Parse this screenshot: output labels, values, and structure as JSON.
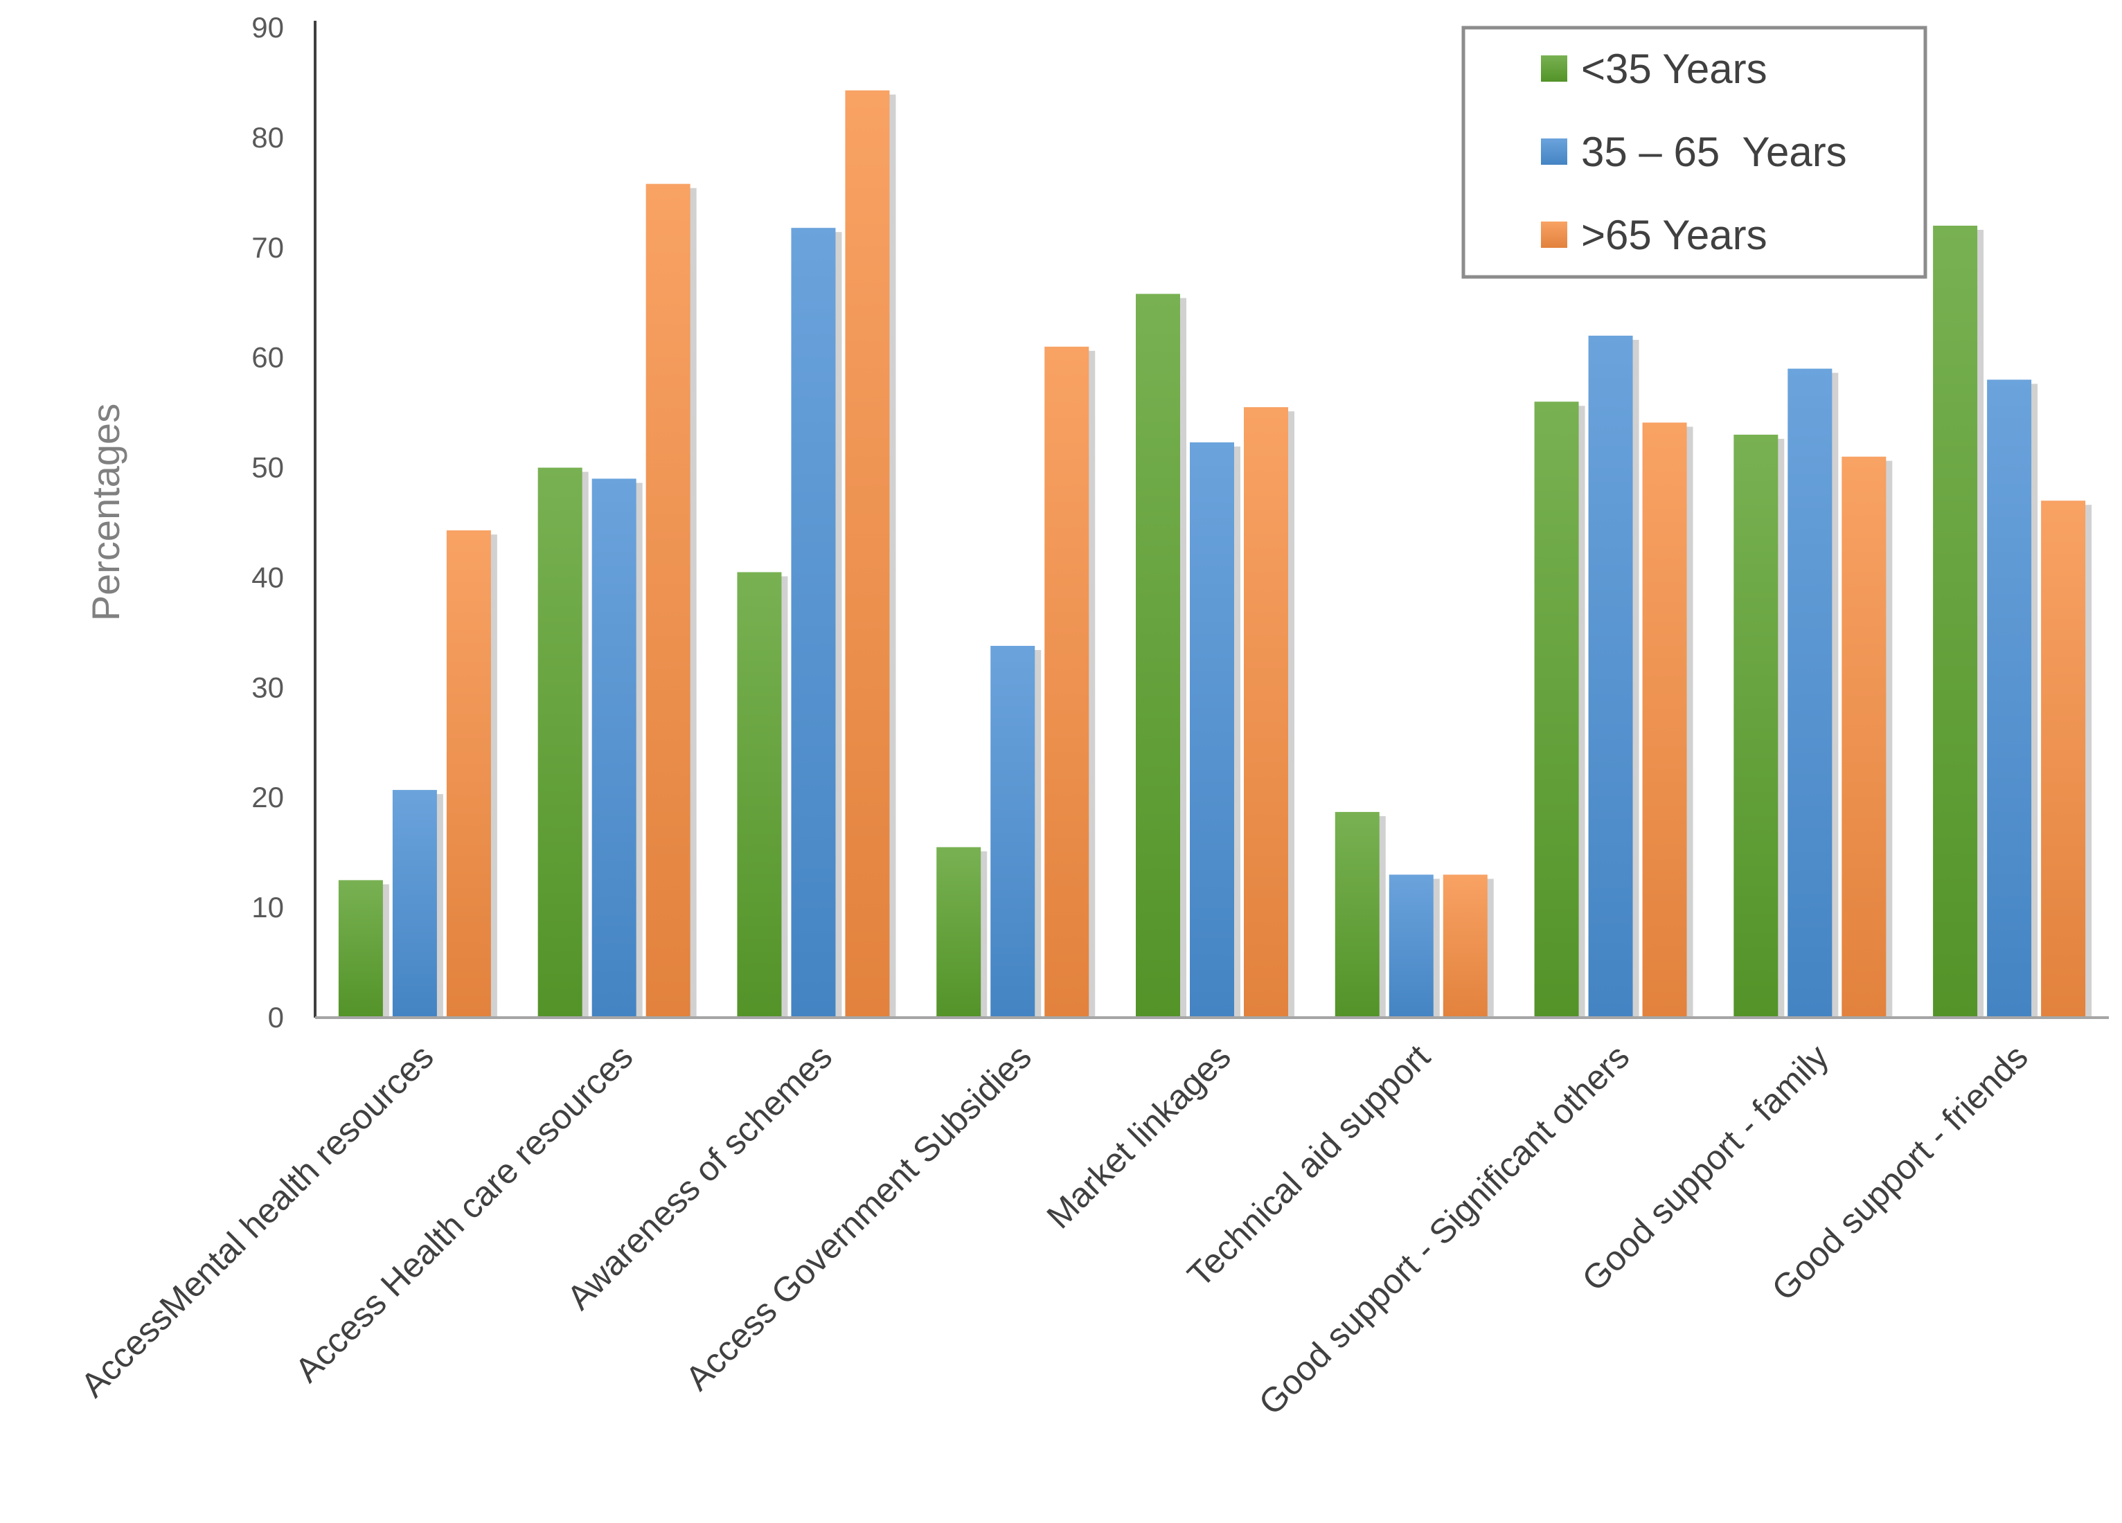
{
  "chart_data": {
    "type": "bar",
    "title": "",
    "xlabel": "",
    "ylabel": "Percentages",
    "ylim": [
      0,
      90
    ],
    "yticks": [
      0,
      10,
      20,
      30,
      40,
      50,
      60,
      70,
      80,
      90
    ],
    "grid": false,
    "legend_position": "top-right",
    "categories": [
      "AccessMental health resources",
      "Access Health care resources",
      "Awareness of schemes",
      "Access Government Subsidies",
      "Market linkages",
      "Technical aid support",
      "Good support - Significant others",
      "Good support - family",
      "Good support - friends"
    ],
    "series": [
      {
        "name": "<35 Years",
        "color": "#5aa02c",
        "values": [
          12.5,
          50,
          40.5,
          15.5,
          65.8,
          18.7,
          56,
          53,
          72
        ]
      },
      {
        "name": "35 – 65  Years",
        "color": "#4a8fd4",
        "values": [
          20.7,
          49,
          71.8,
          33.8,
          52.3,
          13,
          62,
          59,
          58
        ]
      },
      {
        "name": ">65 Years",
        "color": "#f68d42",
        "values": [
          44.3,
          75.8,
          84.3,
          61,
          55.5,
          13,
          54.1,
          51,
          47
        ]
      }
    ]
  }
}
